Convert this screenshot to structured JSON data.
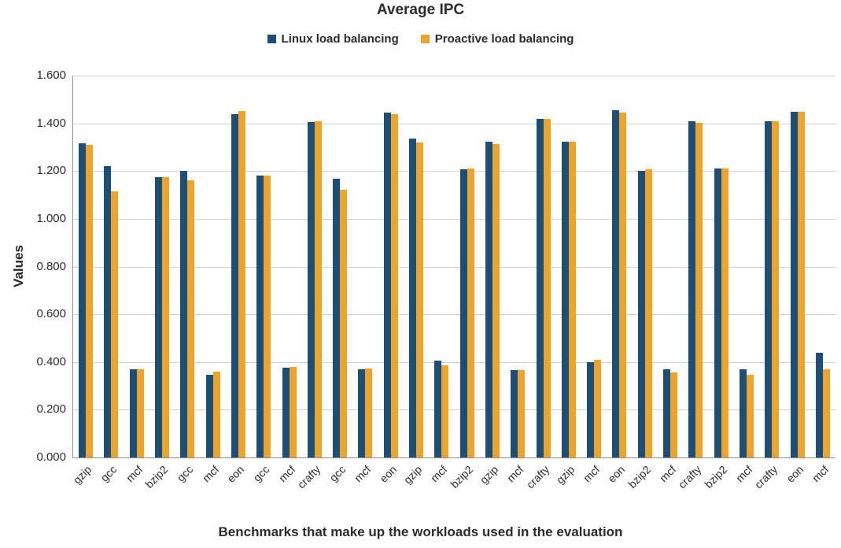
{
  "chart_data": {
    "type": "bar",
    "title": "Average IPC",
    "xlabel": "Benchmarks that make up the workloads used in the evaluation",
    "ylabel": "Values",
    "ylim": [
      0,
      1.6
    ],
    "ytick_step": 0.2,
    "ytick_format_decimals": 3,
    "grid": true,
    "legend_position": "top",
    "categories": [
      "gzip",
      "gcc",
      "mcf",
      "bzip2",
      "gcc",
      "mcf",
      "eon",
      "gcc",
      "mcf",
      "crafty",
      "gcc",
      "mcf",
      "eon",
      "gzip",
      "mcf",
      "bzip2",
      "gzip",
      "mcf",
      "crafty",
      "gzip",
      "mcf",
      "eon",
      "bzip2",
      "mcf",
      "crafty",
      "bzip2",
      "mcf",
      "crafty",
      "eon",
      "mcf"
    ],
    "series": [
      {
        "name": "Linux load balancing",
        "color": "#1b4e79",
        "values": [
          1.315,
          1.22,
          0.37,
          1.175,
          1.2,
          0.345,
          1.44,
          1.18,
          0.375,
          1.405,
          1.168,
          0.37,
          1.445,
          1.335,
          0.405,
          1.207,
          1.322,
          0.365,
          1.418,
          1.322,
          0.4,
          1.455,
          1.202,
          0.368,
          1.41,
          1.21,
          0.368,
          1.408,
          1.448,
          0.44
        ]
      },
      {
        "name": "Proactive load balancing",
        "color": "#eda428",
        "values": [
          1.31,
          1.115,
          0.368,
          1.175,
          1.16,
          0.36,
          1.45,
          1.182,
          0.378,
          1.41,
          1.122,
          0.373,
          1.44,
          1.32,
          0.385,
          1.21,
          1.312,
          0.365,
          1.418,
          1.322,
          0.41,
          1.445,
          1.207,
          0.355,
          1.402,
          1.21,
          0.345,
          1.408,
          1.448,
          0.368
        ]
      }
    ]
  }
}
